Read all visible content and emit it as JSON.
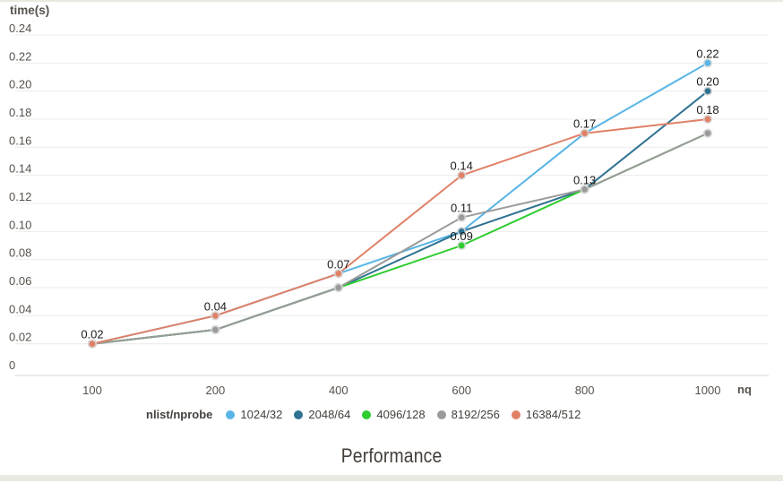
{
  "chart_data": {
    "type": "line",
    "title": "Performance",
    "xlabel": "nq",
    "ylabel": "time(s)",
    "x_categories": [
      "100",
      "200",
      "400",
      "600",
      "800",
      "1000"
    ],
    "ylim": [
      0,
      0.24
    ],
    "y_ticks": [
      "0",
      "0.02",
      "0.04",
      "0.06",
      "0.08",
      "0.10",
      "0.12",
      "0.14",
      "0.16",
      "0.18",
      "0.20",
      "0.22",
      "0.24"
    ],
    "grid": "horizontal",
    "legend_title": "nlist/nprobe",
    "legend_position": "bottom",
    "series": [
      {
        "name": "1024/32",
        "color": "#58b5e6",
        "values": [
          0.02,
          0.04,
          0.07,
          0.1,
          0.17,
          0.22
        ]
      },
      {
        "name": "2048/64",
        "color": "#2f7292",
        "values": [
          0.02,
          0.03,
          0.06,
          0.1,
          0.13,
          0.2
        ]
      },
      {
        "name": "4096/128",
        "color": "#2ecc2e",
        "values": [
          0.02,
          0.03,
          0.06,
          0.09,
          0.13,
          0.17
        ]
      },
      {
        "name": "8192/256",
        "color": "#9a9a9a",
        "values": [
          0.02,
          0.03,
          0.06,
          0.11,
          0.13,
          0.17
        ]
      },
      {
        "name": "16384/512",
        "color": "#e08067",
        "values": [
          0.02,
          0.04,
          0.07,
          0.14,
          0.17,
          0.18
        ]
      }
    ],
    "point_labels": [
      {
        "series": "16384/512",
        "x": "100",
        "text": "0.02"
      },
      {
        "series": "16384/512",
        "x": "200",
        "text": "0.04"
      },
      {
        "series": "16384/512",
        "x": "400",
        "text": "0.07"
      },
      {
        "series": "4096/128",
        "x": "600",
        "text": "0.09"
      },
      {
        "series": "8192/256",
        "x": "600",
        "text": "0.11"
      },
      {
        "series": "16384/512",
        "x": "600",
        "text": "0.14"
      },
      {
        "series": "8192/256",
        "x": "800",
        "text": "0.13"
      },
      {
        "series": "16384/512",
        "x": "800",
        "text": "0.17"
      },
      {
        "series": "16384/512",
        "x": "1000",
        "text": "0.18"
      },
      {
        "series": "2048/64",
        "x": "1000",
        "text": "0.20"
      },
      {
        "series": "1024/32",
        "x": "1000",
        "text": "0.22"
      }
    ],
    "colors": {
      "grid": "#ececec",
      "axis": "#d9d9d9",
      "tick_text": "#57514b",
      "point_label_text": "#1d1b19",
      "title_text": "#433d38",
      "legend_text": "#44403c",
      "accent_bar": "#e8eae1",
      "marker_halo": "#d8d8d8"
    }
  }
}
